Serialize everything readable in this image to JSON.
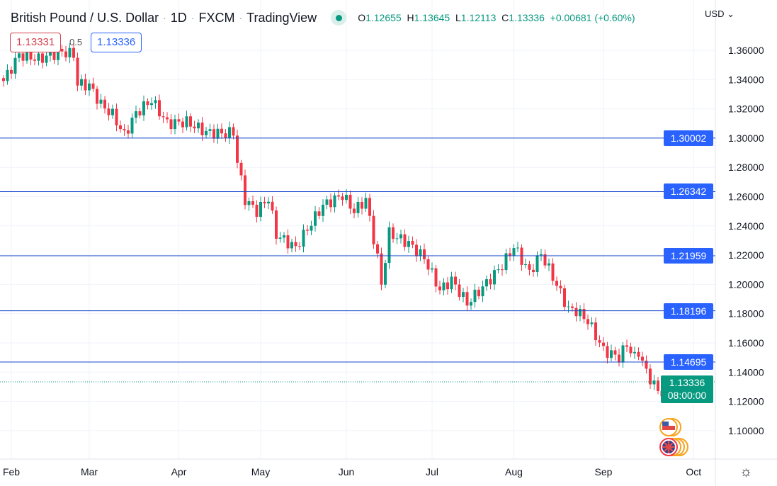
{
  "header": {
    "title": "British Pound / U.S. Dollar",
    "interval": "1D",
    "exchange": "FXCM",
    "source": "TradingView",
    "status": "market-open",
    "ohlc": {
      "o_label": "O",
      "o": "1.12655",
      "h_label": "H",
      "h": "1.13645",
      "l_label": "L",
      "l": "1.12113",
      "c_label": "C",
      "c": "1.13336",
      "change": "+0.00681 (+0.60%)"
    }
  },
  "trade": {
    "sell": "1.13331",
    "spread": "0.5",
    "buy": "1.13336"
  },
  "currency": "USD",
  "colors": {
    "up": "#089981",
    "down": "#f23645",
    "level_line": "#1848cc",
    "label_bg": "#2962ff",
    "last_bg": "#089981"
  },
  "chart_data": {
    "type": "candlestick",
    "symbol": "GBPUSD",
    "ylim": [
      1.085,
      1.375
    ],
    "y_ticks": [
      "1.36000",
      "1.34000",
      "1.32000",
      "1.30000",
      "1.28000",
      "1.26000",
      "1.24000",
      "1.22000",
      "1.20000",
      "1.18000",
      "1.16000",
      "1.14000",
      "1.12000",
      "1.10000"
    ],
    "x_ticks": [
      {
        "label": "Feb",
        "date": "2022-02-01"
      },
      {
        "label": "Mar",
        "date": "2022-03-01"
      },
      {
        "label": "Apr",
        "date": "2022-04-01"
      },
      {
        "label": "May",
        "date": "2022-05-02"
      },
      {
        "label": "Jun",
        "date": "2022-06-01"
      },
      {
        "label": "Jul",
        "date": "2022-07-01"
      },
      {
        "label": "Aug",
        "date": "2022-08-01"
      },
      {
        "label": "Sep",
        "date": "2022-09-01"
      },
      {
        "label": "Oct",
        "date": "2022-10-03"
      }
    ],
    "horizontal_levels": [
      "1.30002",
      "1.26342",
      "1.21959",
      "1.18196",
      "1.14695"
    ],
    "last_price": "1.13336",
    "countdown": "08:00:00",
    "last_candle": {
      "date": "2022-09-23",
      "o": 1.12655,
      "h": 1.13645,
      "l": 1.12113,
      "c": 1.13336
    },
    "close_approx": [
      [
        "2022-01-28",
        1.339
      ],
      [
        "2022-02-03",
        1.357
      ],
      [
        "2022-02-10",
        1.354
      ],
      [
        "2022-02-18",
        1.359
      ],
      [
        "2022-02-23",
        1.357
      ],
      [
        "2022-02-24",
        1.337
      ],
      [
        "2022-03-01",
        1.336
      ],
      [
        "2022-03-04",
        1.323
      ],
      [
        "2022-03-09",
        1.316
      ],
      [
        "2022-03-14",
        1.302
      ],
      [
        "2022-03-17",
        1.317
      ],
      [
        "2022-03-23",
        1.326
      ],
      [
        "2022-03-29",
        1.31
      ],
      [
        "2022-04-05",
        1.311
      ],
      [
        "2022-04-12",
        1.304
      ],
      [
        "2022-04-19",
        1.303
      ],
      [
        "2022-04-21",
        1.304
      ],
      [
        "2022-04-22",
        1.284
      ],
      [
        "2022-04-26",
        1.258
      ],
      [
        "2022-04-29",
        1.25
      ],
      [
        "2022-05-04",
        1.259
      ],
      [
        "2022-05-06",
        1.234
      ],
      [
        "2022-05-13",
        1.225
      ],
      [
        "2022-05-18",
        1.238
      ],
      [
        "2022-05-24",
        1.254
      ],
      [
        "2022-05-31",
        1.261
      ],
      [
        "2022-06-03",
        1.25
      ],
      [
        "2022-06-08",
        1.258
      ],
      [
        "2022-06-13",
        1.218
      ],
      [
        "2022-06-14",
        1.2
      ],
      [
        "2022-06-16",
        1.235
      ],
      [
        "2022-06-23",
        1.228
      ],
      [
        "2022-06-29",
        1.218
      ],
      [
        "2022-07-05",
        1.196
      ],
      [
        "2022-07-08",
        1.203
      ],
      [
        "2022-07-14",
        1.187
      ],
      [
        "2022-07-20",
        1.198
      ],
      [
        "2022-07-27",
        1.213
      ],
      [
        "2022-08-01",
        1.226
      ],
      [
        "2022-08-05",
        1.208
      ],
      [
        "2022-08-10",
        1.221
      ],
      [
        "2022-08-15",
        1.205
      ],
      [
        "2022-08-19",
        1.183
      ],
      [
        "2022-08-23",
        1.182
      ],
      [
        "2022-08-26",
        1.175
      ],
      [
        "2022-09-01",
        1.155
      ],
      [
        "2022-09-07",
        1.15
      ],
      [
        "2022-09-09",
        1.159
      ],
      [
        "2022-09-13",
        1.15
      ],
      [
        "2022-09-14",
        1.154
      ],
      [
        "2022-09-16",
        1.14
      ],
      [
        "2022-09-21",
        1.127
      ],
      [
        "2022-09-22",
        1.12655
      ]
    ],
    "events": [
      "us-flag-event",
      "uk-flag-event"
    ]
  }
}
